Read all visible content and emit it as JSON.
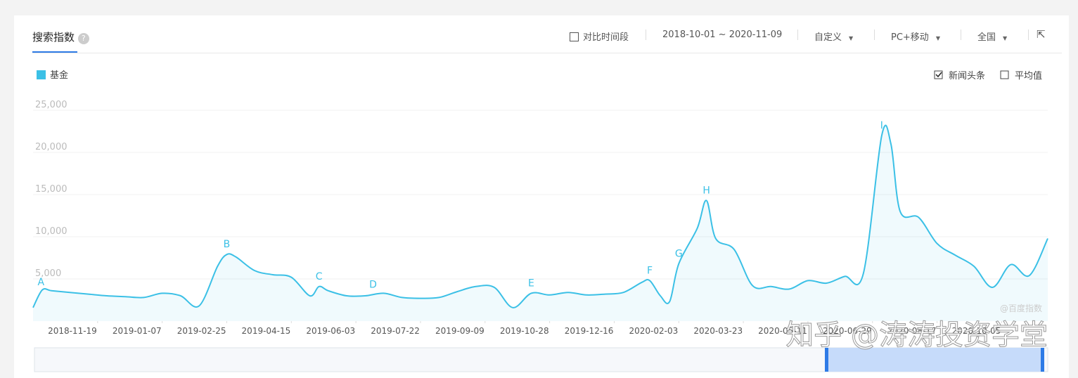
{
  "header": {
    "title": "搜索指数",
    "compare": "对比时间段",
    "date_range": "2018-10-01 ~ 2020-11-09",
    "mode": "自定义",
    "device": "PC+移动",
    "region": "全国"
  },
  "chart_data": {
    "type": "line",
    "x": [
      "2018-10-01",
      "2018-10-08",
      "2018-10-15",
      "2018-10-29",
      "2018-11-12",
      "2018-11-26",
      "2018-12-10",
      "2018-12-24",
      "2019-01-07",
      "2019-01-21",
      "2019-02-04",
      "2019-02-18",
      "2019-02-25",
      "2019-03-04",
      "2019-03-18",
      "2019-04-01",
      "2019-04-15",
      "2019-04-29",
      "2019-05-06",
      "2019-05-13",
      "2019-05-27",
      "2019-06-10",
      "2019-06-24",
      "2019-07-08",
      "2019-07-22",
      "2019-08-05",
      "2019-08-19",
      "2019-09-02",
      "2019-09-16",
      "2019-09-30",
      "2019-10-14",
      "2019-10-28",
      "2019-11-11",
      "2019-11-25",
      "2019-12-09",
      "2019-12-23",
      "2020-01-06",
      "2020-01-12",
      "2020-01-20",
      "2020-01-27",
      "2020-02-03",
      "2020-02-17",
      "2020-02-24",
      "2020-03-02",
      "2020-03-16",
      "2020-03-30",
      "2020-04-13",
      "2020-04-27",
      "2020-05-11",
      "2020-05-25",
      "2020-06-08",
      "2020-06-22",
      "2020-07-06",
      "2020-07-13",
      "2020-07-20",
      "2020-08-03",
      "2020-08-17",
      "2020-08-31",
      "2020-09-14",
      "2020-09-28",
      "2020-10-12",
      "2020-10-26",
      "2020-11-09"
    ],
    "series": [
      {
        "name": "基金",
        "color": "#3bc0e6",
        "values": [
          1600,
          3700,
          3600,
          3400,
          3200,
          3000,
          2900,
          2800,
          3300,
          3000,
          1800,
          6500,
          7900,
          7600,
          6000,
          5500,
          5200,
          3000,
          4100,
          3600,
          3000,
          3000,
          3300,
          2800,
          2700,
          2800,
          3500,
          4100,
          4000,
          1600,
          3300,
          3100,
          3400,
          3100,
          3200,
          3400,
          4600,
          4800,
          3000,
          2300,
          6800,
          11000,
          14300,
          9800,
          8500,
          4200,
          4100,
          3800,
          4800,
          4500,
          5300,
          5600,
          22000,
          21000,
          13000,
          12300,
          9200,
          7800,
          6500,
          4000,
          6700,
          5400,
          9800
        ]
      }
    ],
    "xlim": [
      "2018-10-01",
      "2020-11-09"
    ],
    "xticks": [
      "2018-11-19",
      "2019-01-07",
      "2019-02-25",
      "2019-04-15",
      "2019-06-03",
      "2019-07-22",
      "2019-09-09",
      "2019-10-28",
      "2019-12-16",
      "2020-02-03",
      "2020-03-23",
      "2020-05-11",
      "2020-06-29",
      "2020-08-17",
      "2020-10-05"
    ],
    "ylim": [
      0,
      25000
    ],
    "yticks": [
      {
        "value": 5000,
        "label": "5,000"
      },
      {
        "value": 10000,
        "label": "10,000"
      },
      {
        "value": 15000,
        "label": "15,000"
      },
      {
        "value": 20000,
        "label": "20,000"
      },
      {
        "value": 25000,
        "label": "25,000"
      }
    ],
    "grid": true,
    "annotations": [
      {
        "label": "A",
        "x": "2018-10-07"
      },
      {
        "label": "B",
        "x": "2019-02-25"
      },
      {
        "label": "C",
        "x": "2019-05-06"
      },
      {
        "label": "D",
        "x": "2019-06-16"
      },
      {
        "label": "E",
        "x": "2019-10-14"
      },
      {
        "label": "F",
        "x": "2020-01-12"
      },
      {
        "label": "G",
        "x": "2020-02-03"
      },
      {
        "label": "H",
        "x": "2020-02-24"
      },
      {
        "label": "I",
        "x": "2020-07-06"
      }
    ],
    "options": [
      {
        "label": "新闻头条",
        "checked": true
      },
      {
        "label": "平均值",
        "checked": false
      }
    ],
    "source": "@百度指数",
    "watermark": "知乎 @涛涛投资学堂"
  }
}
